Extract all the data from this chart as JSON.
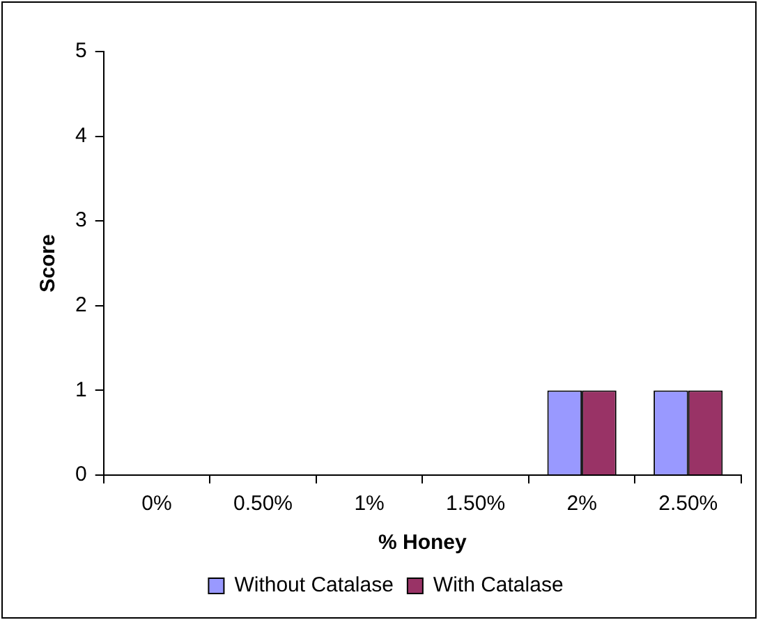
{
  "chart_data": {
    "type": "bar",
    "xlabel": "% Honey",
    "ylabel": "Score",
    "categories": [
      "0%",
      "0.50%",
      "1%",
      "1.50%",
      "2%",
      "2.50%"
    ],
    "series": [
      {
        "name": "Without Catalase",
        "color": "#9999ff",
        "values": [
          0,
          0,
          0,
          0,
          1,
          1
        ]
      },
      {
        "name": "With Catalase",
        "color": "#993366",
        "values": [
          0,
          0,
          0,
          0,
          1,
          1
        ]
      }
    ],
    "ylim": [
      0,
      5
    ],
    "yticks": [
      0,
      1,
      2,
      3,
      4,
      5
    ],
    "grid": false,
    "legend": "bottom"
  }
}
